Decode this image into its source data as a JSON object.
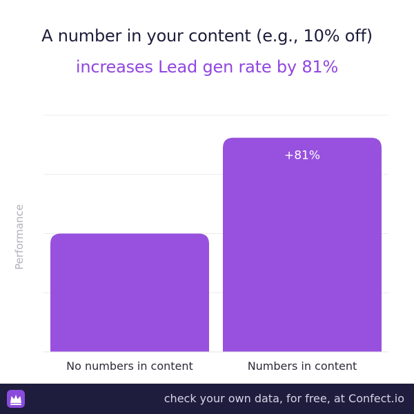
{
  "title_line1": "A number in your content (e.g., 10% off)",
  "title_line2": "increases Lead gen rate by 81%",
  "footer_text": "check your own data, for free, at Confect.io",
  "logo_icon": "confect-crown-logo-icon",
  "colors": {
    "bar": "#9751de",
    "title_accent": "#9146e0",
    "title_dark": "#1c1c3a",
    "footer_bg": "#1f1d3d",
    "gridline": "#ececec"
  },
  "chart_data": {
    "type": "bar",
    "title": "A number in your content (e.g., 10% off) increases Lead gen rate by 81%",
    "ylabel": "Performance",
    "xlabel": "",
    "categories": [
      "No numbers in content",
      "Numbers in content"
    ],
    "values": [
      100,
      181
    ],
    "data_labels": [
      "",
      "+81%"
    ],
    "ylim": [
      0,
      200
    ],
    "grid": true,
    "legend": "none"
  }
}
